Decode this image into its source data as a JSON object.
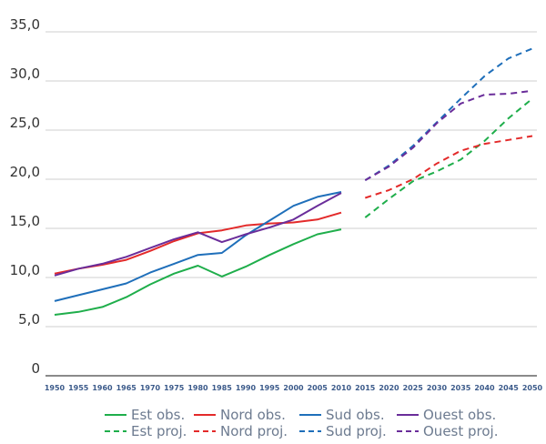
{
  "chart_data": {
    "type": "line",
    "title": "",
    "xlabel": "",
    "ylabel": "",
    "x_ticks": [
      "1950",
      "1955",
      "1960",
      "1965",
      "1970",
      "1975",
      "1980",
      "1985",
      "1990",
      "1995",
      "2000",
      "2005",
      "2010",
      "2015",
      "2020",
      "2025",
      "2030",
      "2035",
      "2040",
      "2045",
      "2050"
    ],
    "y_ticks": [
      "0",
      "5,0",
      "10,0",
      "15,0",
      "20,0",
      "25,0",
      "30,0",
      "35,0"
    ],
    "ylim": [
      0,
      35
    ],
    "xlim": [
      1950,
      2050
    ],
    "grid": "horizontal",
    "legend_position": "bottom",
    "series": [
      {
        "name": "Est obs.",
        "color": "#1fae4b",
        "dash": "solid",
        "x": [
          1950,
          1955,
          1960,
          1965,
          1970,
          1975,
          1980,
          1985,
          1990,
          1995,
          2000,
          2005,
          2010
        ],
        "y": [
          6.2,
          6.5,
          7.0,
          8.0,
          9.3,
          10.4,
          11.2,
          10.1,
          11.1,
          12.3,
          13.4,
          14.4,
          14.9
        ]
      },
      {
        "name": "Nord obs.",
        "color": "#e32a2a",
        "dash": "solid",
        "x": [
          1950,
          1955,
          1960,
          1965,
          1970,
          1975,
          1980,
          1985,
          1990,
          1995,
          2000,
          2005,
          2010
        ],
        "y": [
          10.4,
          10.9,
          11.3,
          11.8,
          12.7,
          13.7,
          14.5,
          14.8,
          15.3,
          15.5,
          15.6,
          15.9,
          16.6
        ]
      },
      {
        "name": "Sud obs.",
        "color": "#1f6fba",
        "dash": "solid",
        "x": [
          1950,
          1955,
          1960,
          1965,
          1970,
          1975,
          1980,
          1985,
          1990,
          1995,
          2000,
          2005,
          2010
        ],
        "y": [
          7.6,
          8.2,
          8.8,
          9.4,
          10.5,
          11.4,
          12.3,
          12.5,
          14.3,
          15.8,
          17.3,
          18.2,
          18.7
        ]
      },
      {
        "name": "Ouest obs.",
        "color": "#6a2d9a",
        "dash": "solid",
        "x": [
          1950,
          1955,
          1960,
          1965,
          1970,
          1975,
          1980,
          1985,
          1990,
          1995,
          2000,
          2005,
          2010
        ],
        "y": [
          10.2,
          10.9,
          11.4,
          12.1,
          13.0,
          13.9,
          14.6,
          13.6,
          14.4,
          15.1,
          15.9,
          17.3,
          18.6
        ]
      },
      {
        "name": "Est proj.",
        "color": "#1fae4b",
        "dash": "dashed",
        "x": [
          2015,
          2020,
          2025,
          2030,
          2035,
          2040,
          2045,
          2050
        ],
        "y": [
          16.1,
          18.0,
          19.8,
          20.8,
          22.0,
          23.9,
          26.2,
          28.2
        ]
      },
      {
        "name": "Nord proj.",
        "color": "#e32a2a",
        "dash": "dashed",
        "x": [
          2015,
          2020,
          2025,
          2030,
          2035,
          2040,
          2045,
          2050
        ],
        "y": [
          18.1,
          18.9,
          20.0,
          21.6,
          22.9,
          23.6,
          24.0,
          24.4
        ]
      },
      {
        "name": "Sud proj.",
        "color": "#1f6fba",
        "dash": "dashed",
        "x": [
          2015,
          2020,
          2025,
          2030,
          2035,
          2040,
          2045,
          2050
        ],
        "y": [
          19.9,
          21.4,
          23.4,
          25.8,
          28.2,
          30.5,
          32.3,
          33.3
        ]
      },
      {
        "name": "Ouest proj.",
        "color": "#6a2d9a",
        "dash": "dashed",
        "x": [
          2015,
          2020,
          2025,
          2030,
          2035,
          2040,
          2045,
          2050
        ],
        "y": [
          19.9,
          21.3,
          23.2,
          25.7,
          27.7,
          28.6,
          28.7,
          29.0
        ]
      }
    ]
  }
}
